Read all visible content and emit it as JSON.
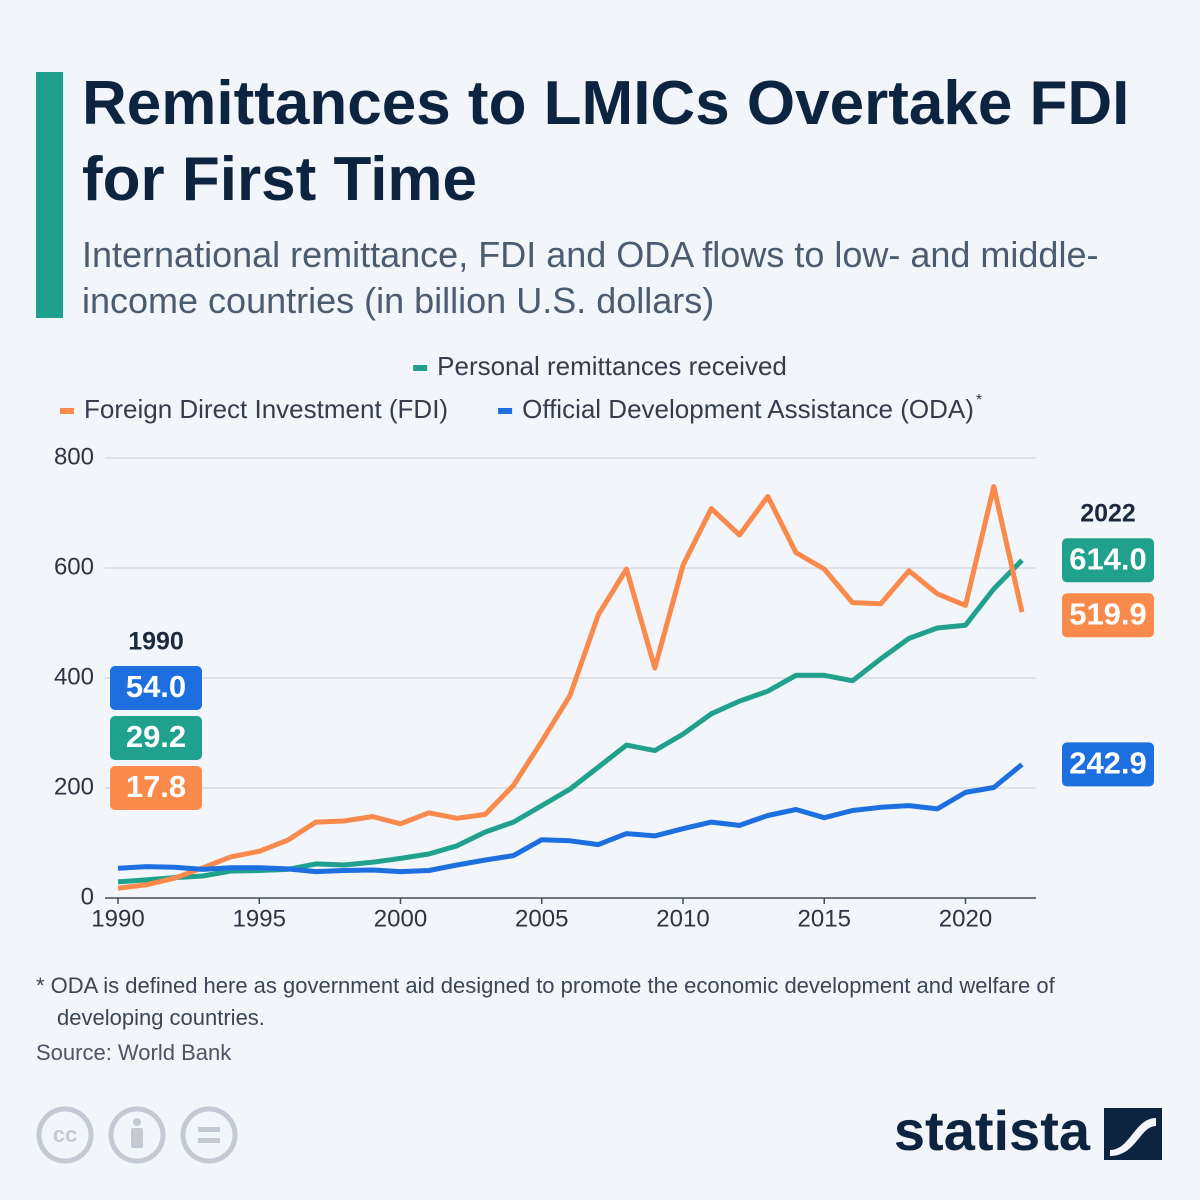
{
  "chart_data": {
    "type": "line",
    "title": "Remittances to LMICs Overtake FDI for First Time",
    "subtitle": "International remittance, FDI and ODA flows to low- and middle-income countries (in billion U.S. dollars)",
    "x": [
      1990,
      1991,
      1992,
      1993,
      1994,
      1995,
      1996,
      1997,
      1998,
      1999,
      2000,
      2001,
      2002,
      2003,
      2004,
      2005,
      2006,
      2007,
      2008,
      2009,
      2010,
      2011,
      2012,
      2013,
      2014,
      2015,
      2016,
      2017,
      2018,
      2019,
      2020,
      2021,
      2022
    ],
    "series": [
      {
        "name": "Personal remittances received",
        "color": "#20a18e",
        "values": [
          29.2,
          33,
          37,
          40,
          49,
          50,
          52,
          62,
          60,
          65,
          72,
          80,
          95,
          120,
          138,
          168,
          198,
          238,
          278,
          268,
          298,
          335,
          358,
          376,
          405,
          405,
          395,
          435,
          472,
          491,
          496,
          562,
          614.0
        ],
        "value_labels": [
          "29.2",
          null,
          null,
          null,
          null,
          null,
          null,
          null,
          null,
          null,
          null,
          null,
          null,
          null,
          null,
          null,
          null,
          null,
          null,
          null,
          null,
          null,
          null,
          null,
          null,
          null,
          null,
          null,
          null,
          null,
          null,
          null,
          "614.0"
        ]
      },
      {
        "name": "Foreign Direct Investment (FDI)",
        "color": "#fa8a4c",
        "values": [
          17.8,
          24,
          36,
          55,
          75,
          85,
          105,
          138,
          140,
          148,
          135,
          155,
          145,
          152,
          205,
          285,
          368,
          515,
          598,
          418,
          605,
          708,
          660,
          730,
          628,
          598,
          537,
          535,
          595,
          553,
          532,
          748,
          519.9
        ],
        "value_labels": [
          "17.8",
          null,
          null,
          null,
          null,
          null,
          null,
          null,
          null,
          null,
          null,
          null,
          null,
          null,
          null,
          null,
          null,
          null,
          null,
          null,
          null,
          null,
          null,
          null,
          null,
          null,
          null,
          null,
          null,
          null,
          null,
          null,
          "519.9"
        ]
      },
      {
        "name": "Official Development Assistance (ODA)",
        "color": "#1d6fe0",
        "values": [
          54.0,
          57,
          56,
          52,
          55,
          55,
          53,
          48,
          50,
          51,
          48,
          50,
          60,
          69,
          77,
          106,
          104,
          97,
          117,
          113,
          126,
          138,
          132,
          150,
          161,
          146,
          159,
          165,
          168,
          162,
          192,
          201,
          242.9
        ],
        "value_labels": [
          "54.0",
          null,
          null,
          null,
          null,
          null,
          null,
          null,
          null,
          null,
          null,
          null,
          null,
          null,
          null,
          null,
          null,
          null,
          null,
          null,
          null,
          null,
          null,
          null,
          null,
          null,
          null,
          null,
          null,
          null,
          null,
          null,
          "242.9"
        ]
      }
    ],
    "legend_footnote_marker": "*",
    "xlim": [
      1990,
      2022
    ],
    "xticks": [
      1990,
      1995,
      2000,
      2005,
      2010,
      2015,
      2020
    ],
    "ylim": [
      0,
      800
    ],
    "yticks": [
      0,
      200,
      400,
      600,
      800
    ],
    "grid": true,
    "note": "* ODA is defined here as government aid designed to promote the economic development and welfare of developing countries.",
    "source": "Source: World Bank",
    "brand": "statista",
    "license_icon": "cc"
  }
}
